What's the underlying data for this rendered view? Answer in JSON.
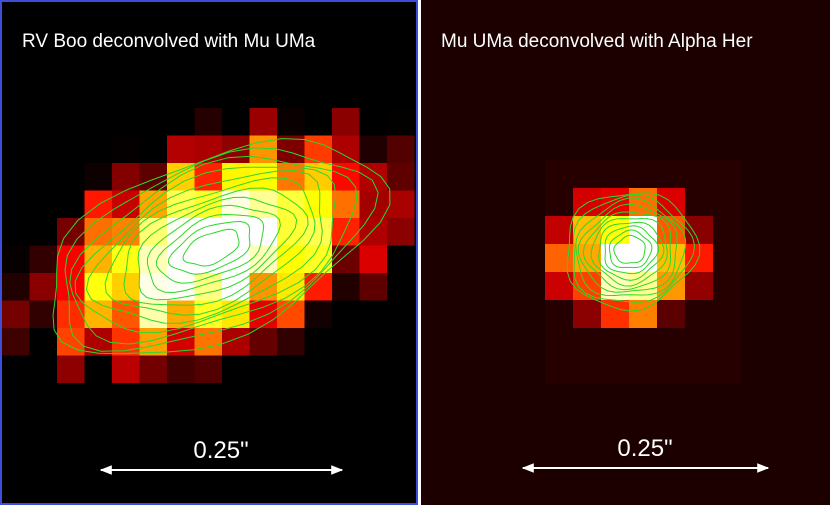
{
  "panels": [
    {
      "title": "RV Boo deconvolved with Mu UMa",
      "scale_label": "0.25\""
    },
    {
      "title": "Mu UMa deconvolved with Alpha Her",
      "scale_label": "0.25\""
    }
  ]
}
